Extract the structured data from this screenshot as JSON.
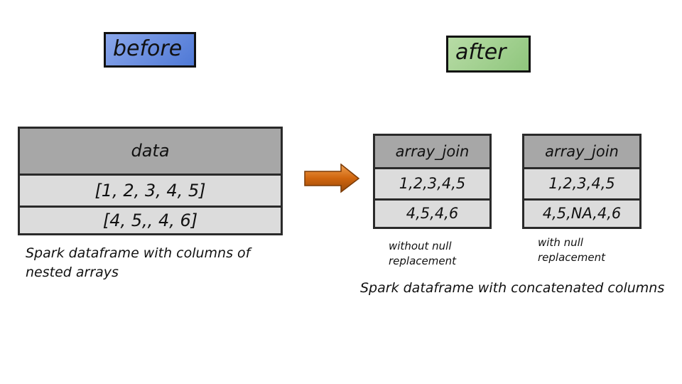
{
  "before_label": "before",
  "after_label": "after",
  "before_table": {
    "header": "data",
    "rows": [
      "[1, 2, 3, 4, 5]",
      "[4, 5,, 4, 6]"
    ]
  },
  "before_caption": {
    "line1": "Spark dataframe with columns of",
    "line2": "nested arrays"
  },
  "after_tables": [
    {
      "header": "array_join",
      "rows": [
        "1,2,3,4,5",
        "4,5,4,6"
      ],
      "caption_line1": "without null",
      "caption_line2": "replacement"
    },
    {
      "header": "array_join",
      "rows": [
        "1,2,3,4,5",
        "4,5,NA,4,6"
      ],
      "caption_line1": "with null",
      "caption_line2": "replacement"
    }
  ],
  "after_caption": "Spark dataframe with concatenated columns",
  "colors": {
    "before_fill": "#4f79d6",
    "after_fill": "#8fc67d",
    "arrow_fill": "#d0660f",
    "header_fill": "#a7a7a7",
    "cell_fill": "#dcdcdc"
  }
}
